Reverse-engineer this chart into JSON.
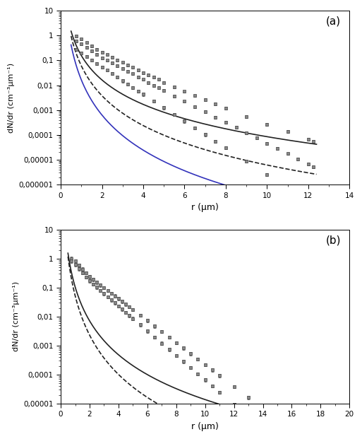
{
  "panel_a": {
    "xlim": [
      0,
      14
    ],
    "ylim": [
      1e-06,
      10
    ],
    "xlabel": "r (µm)",
    "ylabel": "dN/dr (cm⁻³µm⁻¹)",
    "label": "(a)",
    "yticks": [
      1e-06,
      1e-05,
      0.0001,
      0.001,
      0.01,
      0.1,
      1,
      10
    ],
    "ytick_labels": [
      "0,000001",
      "0,00001",
      "0,0001",
      "0,001",
      "0,01",
      "0,1",
      "1",
      "10"
    ],
    "xticks": [
      0,
      2,
      4,
      6,
      8,
      10,
      12,
      14
    ],
    "series1": {
      "x": [
        0.75,
        1.0,
        1.25,
        1.5,
        1.75,
        2.0,
        2.25,
        2.5,
        2.75,
        3.0,
        3.25,
        3.5,
        3.75,
        4.0,
        4.25,
        4.5,
        4.75,
        5.0,
        5.5,
        6.0,
        6.5,
        7.0,
        7.5,
        8.0,
        9.0,
        10.0,
        11.0,
        12.0,
        12.25
      ],
      "y": [
        0.95,
        0.72,
        0.52,
        0.38,
        0.28,
        0.21,
        0.17,
        0.135,
        0.105,
        0.082,
        0.065,
        0.052,
        0.041,
        0.032,
        0.026,
        0.021,
        0.017,
        0.013,
        0.0085,
        0.0056,
        0.0038,
        0.0026,
        0.00175,
        0.0012,
        0.00056,
        0.00027,
        0.000135,
        6.8e-05,
        5.5e-05
      ],
      "yerr_lo": [
        0.12,
        0.08,
        0.06,
        0.045,
        0.034,
        0.025,
        0.02,
        0.016,
        0.013,
        0.01,
        0.008,
        0.006,
        0.005,
        0.004,
        0.003,
        0.0025,
        0.002,
        0.0015,
        0.001,
        0.0007,
        0.00046,
        0.00032,
        0.00022,
        0.00015,
        7e-05,
        3.4e-05,
        1.7e-05,
        8.5e-06,
        6.9e-06
      ],
      "yerr_hi": [
        0.12,
        0.08,
        0.06,
        0.045,
        0.034,
        0.025,
        0.02,
        0.016,
        0.013,
        0.01,
        0.008,
        0.006,
        0.005,
        0.004,
        0.003,
        0.0025,
        0.002,
        0.0015,
        0.001,
        0.0007,
        0.00046,
        0.00032,
        0.00022,
        0.00015,
        7e-05,
        3.4e-05,
        1.7e-05,
        8.5e-06,
        6.9e-06
      ],
      "fit_x": [
        0.5,
        12.4
      ],
      "fit_y": [
        1.5,
        4.2e-05
      ],
      "color": "#222222",
      "linestyle": "-",
      "linewidth": 1.2
    },
    "series2": {
      "x": [
        0.75,
        1.0,
        1.25,
        1.5,
        1.75,
        2.0,
        2.25,
        2.5,
        2.75,
        3.0,
        3.25,
        3.5,
        3.75,
        4.0,
        4.25,
        4.5,
        4.75,
        5.0,
        5.5,
        6.0,
        6.5,
        7.0,
        7.5,
        8.0,
        8.5,
        9.0,
        9.5,
        10.0,
        10.5,
        11.0,
        11.5,
        12.0,
        12.25
      ],
      "y": [
        0.62,
        0.46,
        0.33,
        0.24,
        0.175,
        0.128,
        0.1,
        0.078,
        0.06,
        0.047,
        0.037,
        0.029,
        0.022,
        0.017,
        0.013,
        0.01,
        0.0079,
        0.0061,
        0.0037,
        0.00225,
        0.00138,
        0.00085,
        0.00052,
        0.00032,
        0.0002,
        0.000122,
        7.5e-05,
        4.6e-05,
        2.85e-05,
        1.75e-05,
        1.08e-05,
        6.7e-06,
        5.2e-06
      ],
      "yerr_lo": [
        0.08,
        0.06,
        0.04,
        0.03,
        0.022,
        0.016,
        0.012,
        0.01,
        0.0075,
        0.0058,
        0.0046,
        0.0036,
        0.0027,
        0.0021,
        0.0016,
        0.00125,
        0.001,
        0.00077,
        0.00046,
        0.00028,
        0.00017,
        0.000106,
        6.5e-05,
        4e-05,
        2.5e-05,
        1.53e-05,
        9.4e-06,
        5.8e-06,
        3.6e-06,
        2.2e-06,
        1.35e-06,
        8.4e-07,
        6.5e-07
      ],
      "yerr_hi": [
        0.08,
        0.06,
        0.04,
        0.03,
        0.022,
        0.016,
        0.012,
        0.01,
        0.0075,
        0.0058,
        0.0046,
        0.0036,
        0.0027,
        0.0021,
        0.0016,
        0.00125,
        0.001,
        0.00077,
        0.00046,
        0.00028,
        0.00017,
        0.000106,
        6.5e-05,
        4e-05,
        2.5e-05,
        1.53e-05,
        9.4e-06,
        5.8e-06,
        3.6e-06,
        2.2e-06,
        1.35e-06,
        8.4e-07,
        6.5e-07
      ],
      "fit_x": [
        0.5,
        12.4
      ],
      "fit_y": [
        0.95,
        2.6e-06
      ],
      "color": "#222222",
      "linestyle": "--",
      "linewidth": 1.2
    },
    "series3": {
      "x": [
        0.75,
        1.0,
        1.25,
        1.5,
        1.75,
        2.0,
        2.25,
        2.5,
        2.75,
        3.0,
        3.25,
        3.5,
        3.75,
        4.0,
        4.5,
        5.0,
        5.5,
        6.0,
        6.5,
        7.0,
        7.5,
        8.0,
        9.0,
        10.0,
        11.0,
        12.0,
        12.25
      ],
      "y": [
        0.28,
        0.2,
        0.145,
        0.104,
        0.075,
        0.054,
        0.04,
        0.029,
        0.021,
        0.015,
        0.011,
        0.0082,
        0.0059,
        0.0043,
        0.0023,
        0.00124,
        0.000666,
        0.000358,
        0.000192,
        0.000103,
        5.55e-05,
        2.99e-05,
        8.7e-06,
        2.53e-06,
        7.37e-07,
        2.15e-07,
        1.7e-07
      ],
      "yerr_lo": [
        0.04,
        0.027,
        0.019,
        0.014,
        0.01,
        0.007,
        0.005,
        0.0039,
        0.0028,
        0.002,
        0.0015,
        0.0011,
        0.00079,
        0.00058,
        0.0003,
        0.000165,
        8.88e-05,
        4.77e-05,
        2.56e-05,
        1.37e-05,
        7.4e-06,
        3.99e-06,
        1.16e-06,
        3.37e-07,
        9.82e-08,
        2.86e-08,
        2.27e-08
      ],
      "yerr_hi": [
        0.04,
        0.027,
        0.019,
        0.014,
        0.01,
        0.007,
        0.005,
        0.0039,
        0.0028,
        0.002,
        0.0015,
        0.0011,
        0.00079,
        0.00058,
        0.0003,
        0.000165,
        8.88e-05,
        4.77e-05,
        2.56e-05,
        1.37e-05,
        7.4e-06,
        3.99e-06,
        1.16e-06,
        3.37e-07,
        9.82e-08,
        2.86e-08,
        2.27e-08
      ],
      "fit_x": [
        0.5,
        12.4
      ],
      "fit_y": [
        0.42,
        1.2e-07
      ],
      "color": "#3333bb",
      "linestyle": "-",
      "linewidth": 1.2
    }
  },
  "panel_b": {
    "xlim": [
      0,
      20
    ],
    "ylim": [
      1e-05,
      10
    ],
    "xlabel": "r (µm)",
    "ylabel": "dN/dr (cm⁻³µm⁻¹)",
    "label": "(b)",
    "yticks": [
      1e-05,
      0.0001,
      0.001,
      0.01,
      0.1,
      1,
      10
    ],
    "ytick_labels": [
      "0,00001",
      "0,0001",
      "0,001",
      "0,01",
      "0,1",
      "1",
      "10"
    ],
    "xticks": [
      0,
      2,
      4,
      6,
      8,
      10,
      12,
      14,
      16,
      18,
      20
    ],
    "series1": {
      "x": [
        0.75,
        1.0,
        1.25,
        1.5,
        1.75,
        2.0,
        2.25,
        2.5,
        2.75,
        3.0,
        3.25,
        3.5,
        3.75,
        4.0,
        4.25,
        4.5,
        4.75,
        5.0,
        5.5,
        6.0,
        6.5,
        7.0,
        7.5,
        8.0,
        8.5,
        9.0,
        9.5,
        10.0,
        10.5,
        11.0,
        12.0,
        13.0,
        14.0,
        14.5
      ],
      "y": [
        1.02,
        0.82,
        0.6,
        0.44,
        0.325,
        0.24,
        0.192,
        0.154,
        0.124,
        0.1,
        0.0804,
        0.0646,
        0.052,
        0.0418,
        0.0336,
        0.027,
        0.0218,
        0.0175,
        0.0113,
        0.00731,
        0.00472,
        0.00305,
        0.00197,
        0.00127,
        0.000823,
        0.000532,
        0.000344,
        0.000222,
        0.000144,
        9.29e-05,
        3.89e-05,
        1.63e-05,
        6.8e-06,
        4.5e-06
      ],
      "yerr_lo": [
        0.13,
        0.1,
        0.075,
        0.055,
        0.041,
        0.03,
        0.024,
        0.019,
        0.016,
        0.0125,
        0.01,
        0.0081,
        0.0065,
        0.0052,
        0.0042,
        0.00338,
        0.00272,
        0.00219,
        0.00141,
        0.000914,
        0.00059,
        0.000381,
        0.000247,
        0.000159,
        0.000103,
        6.65e-05,
        4.3e-05,
        2.78e-05,
        1.8e-05,
        1.16e-05,
        4.87e-06,
        2.04e-06,
        8.5e-07,
        5.6e-07
      ],
      "yerr_hi": [
        0.13,
        0.1,
        0.075,
        0.055,
        0.041,
        0.03,
        0.024,
        0.019,
        0.016,
        0.0125,
        0.01,
        0.0081,
        0.0065,
        0.0052,
        0.0042,
        0.00338,
        0.00272,
        0.00219,
        0.00141,
        0.000914,
        0.00059,
        0.000381,
        0.000247,
        0.000159,
        0.000103,
        6.65e-05,
        4.3e-05,
        2.78e-05,
        1.8e-05,
        1.16e-05,
        4.87e-06,
        2.04e-06,
        8.5e-07,
        5.6e-07
      ],
      "fit_x": [
        0.5,
        14.8
      ],
      "fit_y": [
        1.55,
        3e-06
      ],
      "color": "#222222",
      "linestyle": "-",
      "linewidth": 1.2
    },
    "series2": {
      "x": [
        0.75,
        1.0,
        1.25,
        1.5,
        1.75,
        2.0,
        2.25,
        2.5,
        2.75,
        3.0,
        3.25,
        3.5,
        3.75,
        4.0,
        4.25,
        4.5,
        4.75,
        5.0,
        5.5,
        6.0,
        6.5,
        7.0,
        7.5,
        8.0,
        8.5,
        9.0,
        9.5,
        10.0,
        10.5,
        11.0,
        12.0,
        12.5,
        13.0,
        14.0,
        14.5
      ],
      "y": [
        0.82,
        0.62,
        0.45,
        0.325,
        0.235,
        0.17,
        0.133,
        0.104,
        0.081,
        0.063,
        0.049,
        0.038,
        0.03,
        0.023,
        0.018,
        0.014,
        0.011,
        0.0086,
        0.0053,
        0.0032,
        0.00197,
        0.00121,
        0.000745,
        0.000459,
        0.000282,
        0.000174,
        0.000107,
        6.58e-05,
        4.06e-05,
        2.5e-05,
        9.5e-06,
        5.9e-06,
        3.6e-06,
        1.4e-06,
        8.5e-07
      ],
      "yerr_lo": [
        0.1,
        0.077,
        0.056,
        0.04,
        0.029,
        0.021,
        0.0166,
        0.013,
        0.01,
        0.0079,
        0.0061,
        0.0048,
        0.0037,
        0.0029,
        0.0022,
        0.00175,
        0.00138,
        0.00108,
        0.000663,
        0.0004,
        0.000246,
        0.000151,
        9.31e-05,
        5.74e-05,
        3.53e-05,
        2.18e-05,
        1.34e-05,
        8.23e-06,
        5.08e-06,
        3.12e-06,
        1.19e-06,
        7.4e-07,
        4.5e-07,
        1.75e-07,
        1.06e-07
      ],
      "yerr_hi": [
        0.1,
        0.077,
        0.056,
        0.04,
        0.029,
        0.021,
        0.0166,
        0.013,
        0.01,
        0.0079,
        0.0061,
        0.0048,
        0.0037,
        0.0029,
        0.0022,
        0.00175,
        0.00138,
        0.00108,
        0.000663,
        0.0004,
        0.000246,
        0.000151,
        9.31e-05,
        5.74e-05,
        3.53e-05,
        2.18e-05,
        1.34e-05,
        8.23e-06,
        5.08e-06,
        3.12e-06,
        1.19e-06,
        7.4e-07,
        4.5e-07,
        1.75e-07,
        1.06e-07
      ],
      "fit_x": [
        0.5,
        14.8
      ],
      "fit_y": [
        1.18,
        2.8e-07
      ],
      "color": "#222222",
      "linestyle": "--",
      "linewidth": 1.2
    }
  },
  "figure_bg": "#ffffff",
  "axes_bg": "#ffffff",
  "marker_color": "#888888",
  "marker_edge_color": "#444444",
  "marker": "s",
  "markersize": 2.5,
  "capsize": 1.5,
  "elinewidth": 0.6
}
